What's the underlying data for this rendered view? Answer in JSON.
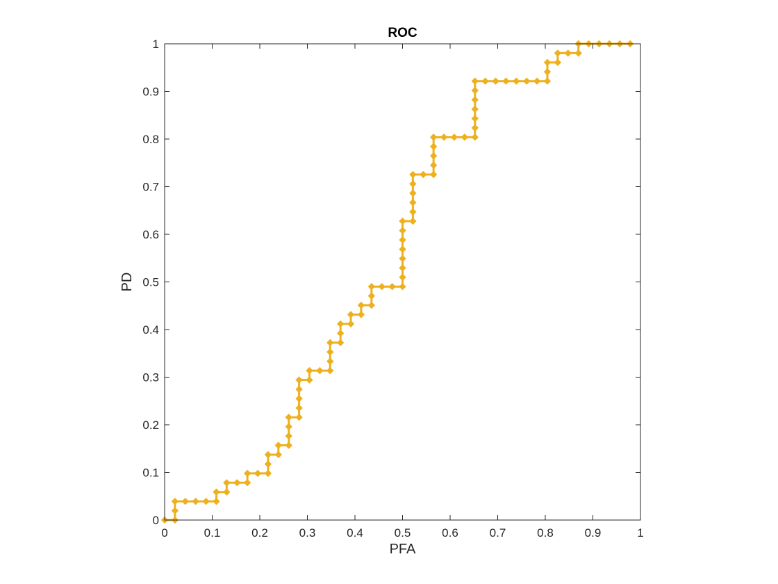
{
  "chart_data": {
    "type": "line",
    "title": "ROC",
    "xlabel": "PFA",
    "ylabel": "PD",
    "xlim": [
      0,
      1
    ],
    "ylim": [
      0,
      1
    ],
    "grid": false,
    "x_ticks": [
      "0",
      "0.1",
      "0.2",
      "0.3",
      "0.4",
      "0.5",
      "0.6",
      "0.7",
      "0.8",
      "0.9",
      "1"
    ],
    "y_ticks": [
      "0",
      "0.1",
      "0.2",
      "0.3",
      "0.4",
      "0.5",
      "0.6",
      "0.7",
      "0.8",
      "0.9",
      "1"
    ],
    "series": [
      {
        "color": "#EDB120",
        "marker": "diamond",
        "points": [
          [
            0.0,
            0.0
          ],
          [
            0.0217,
            0.0
          ],
          [
            0.0217,
            0.0196
          ],
          [
            0.0217,
            0.0392
          ],
          [
            0.0435,
            0.0392
          ],
          [
            0.0652,
            0.0392
          ],
          [
            0.087,
            0.0392
          ],
          [
            0.1087,
            0.0392
          ],
          [
            0.1087,
            0.0588
          ],
          [
            0.1304,
            0.0588
          ],
          [
            0.1304,
            0.0784
          ],
          [
            0.1522,
            0.0784
          ],
          [
            0.1739,
            0.0784
          ],
          [
            0.1739,
            0.098
          ],
          [
            0.1957,
            0.098
          ],
          [
            0.2174,
            0.098
          ],
          [
            0.2174,
            0.1176
          ],
          [
            0.2174,
            0.1373
          ],
          [
            0.2391,
            0.1373
          ],
          [
            0.2391,
            0.1569
          ],
          [
            0.2609,
            0.1569
          ],
          [
            0.2609,
            0.1765
          ],
          [
            0.2609,
            0.1961
          ],
          [
            0.2609,
            0.2157
          ],
          [
            0.2826,
            0.2157
          ],
          [
            0.2826,
            0.2353
          ],
          [
            0.2826,
            0.2549
          ],
          [
            0.2826,
            0.2745
          ],
          [
            0.2826,
            0.2941
          ],
          [
            0.3043,
            0.2941
          ],
          [
            0.3043,
            0.3137
          ],
          [
            0.3261,
            0.3137
          ],
          [
            0.3478,
            0.3137
          ],
          [
            0.3478,
            0.3333
          ],
          [
            0.3478,
            0.3529
          ],
          [
            0.3478,
            0.3725
          ],
          [
            0.3696,
            0.3725
          ],
          [
            0.3696,
            0.3922
          ],
          [
            0.3696,
            0.4118
          ],
          [
            0.3913,
            0.4118
          ],
          [
            0.3913,
            0.4314
          ],
          [
            0.413,
            0.4314
          ],
          [
            0.413,
            0.451
          ],
          [
            0.4348,
            0.451
          ],
          [
            0.4348,
            0.4706
          ],
          [
            0.4348,
            0.4902
          ],
          [
            0.4565,
            0.4902
          ],
          [
            0.4783,
            0.4902
          ],
          [
            0.5,
            0.4902
          ],
          [
            0.5,
            0.5098
          ],
          [
            0.5,
            0.5294
          ],
          [
            0.5,
            0.549
          ],
          [
            0.5,
            0.5686
          ],
          [
            0.5,
            0.5882
          ],
          [
            0.5,
            0.6078
          ],
          [
            0.5,
            0.6275
          ],
          [
            0.5217,
            0.6275
          ],
          [
            0.5217,
            0.6471
          ],
          [
            0.5217,
            0.6667
          ],
          [
            0.5217,
            0.6863
          ],
          [
            0.5217,
            0.7059
          ],
          [
            0.5217,
            0.7255
          ],
          [
            0.5435,
            0.7255
          ],
          [
            0.5652,
            0.7255
          ],
          [
            0.5652,
            0.7451
          ],
          [
            0.5652,
            0.7647
          ],
          [
            0.5652,
            0.7843
          ],
          [
            0.5652,
            0.8039
          ],
          [
            0.587,
            0.8039
          ],
          [
            0.6087,
            0.8039
          ],
          [
            0.6304,
            0.8039
          ],
          [
            0.6522,
            0.8039
          ],
          [
            0.6522,
            0.8235
          ],
          [
            0.6522,
            0.8431
          ],
          [
            0.6522,
            0.8627
          ],
          [
            0.6522,
            0.8824
          ],
          [
            0.6522,
            0.902
          ],
          [
            0.6522,
            0.9216
          ],
          [
            0.6739,
            0.9216
          ],
          [
            0.6957,
            0.9216
          ],
          [
            0.7174,
            0.9216
          ],
          [
            0.7391,
            0.9216
          ],
          [
            0.7609,
            0.9216
          ],
          [
            0.7826,
            0.9216
          ],
          [
            0.8043,
            0.9216
          ],
          [
            0.8043,
            0.9412
          ],
          [
            0.8043,
            0.9608
          ],
          [
            0.8261,
            0.9608
          ],
          [
            0.8261,
            0.9804
          ],
          [
            0.8478,
            0.9804
          ],
          [
            0.8696,
            0.9804
          ],
          [
            0.8696,
            1.0
          ],
          [
            0.8913,
            1.0
          ],
          [
            0.913,
            1.0
          ],
          [
            0.9348,
            1.0
          ],
          [
            0.9565,
            1.0
          ],
          [
            0.9783,
            1.0
          ]
        ]
      }
    ]
  }
}
